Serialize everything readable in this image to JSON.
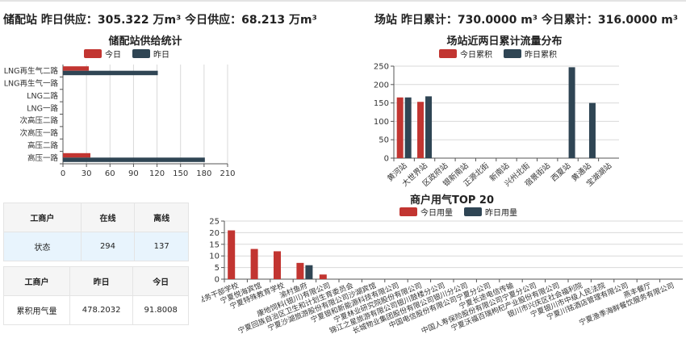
{
  "header": {
    "left": "储配站 昨日供应：305.322 万m³ 今日供应：68.213 万m³",
    "right": "场站 昨日累计：730.0000 m³ 今日累计：316.0000 m³"
  },
  "colors": {
    "today": "#c23531",
    "yesterday": "#2f4554",
    "grid": "#d9d9d9",
    "axis": "#555555"
  },
  "tables": {
    "status": {
      "headers": [
        "工商户",
        "在线",
        "离线"
      ],
      "rows": [
        [
          "状态",
          "294",
          "137"
        ]
      ]
    },
    "usage": {
      "headers": [
        "工商户",
        "昨日",
        "今日"
      ],
      "rows": [
        [
          "累积用气量",
          "478.2032",
          "91.8008"
        ]
      ]
    }
  },
  "chart_data": [
    {
      "type": "bar",
      "orientation": "horizontal",
      "title": "储配站供给统计",
      "legend": [
        "今日",
        "昨日"
      ],
      "categories": [
        "高压一路",
        "高压二路",
        "次高压一路",
        "次高压二路",
        "LNG一路",
        "LNG二路",
        "LNG再生气一路",
        "LNG再生气二路"
      ],
      "series": [
        {
          "name": "今日",
          "values": [
            35,
            0,
            0,
            0,
            0,
            0,
            0,
            33
          ]
        },
        {
          "name": "昨日",
          "values": [
            181,
            0,
            0,
            0,
            0,
            0,
            0,
            121
          ]
        }
      ],
      "xlim": [
        0,
        210
      ],
      "xticks": [
        0,
        30,
        60,
        90,
        120,
        150,
        180,
        210
      ],
      "xticklabels": [
        "0",
        "30",
        "60",
        "90",
        "120",
        "150",
        "180",
        "210"
      ]
    },
    {
      "type": "bar",
      "title": "场站近两日累计流量分布",
      "legend": [
        "今日累积",
        "昨日累积"
      ],
      "categories": [
        "黄河站",
        "大世界站",
        "区政府站",
        "银新南站",
        "正源北街",
        "新南站",
        "兴州北街",
        "宿景街站",
        "西夏站",
        "黄通站",
        "宝湖湖站"
      ],
      "series": [
        {
          "name": "今日累积",
          "values": [
            165,
            153,
            0,
            0,
            0,
            0,
            0,
            0,
            0,
            0,
            0
          ]
        },
        {
          "name": "昨日累积",
          "values": [
            165,
            168,
            0,
            0,
            0,
            0,
            0,
            0,
            247,
            150,
            0
          ]
        }
      ],
      "ylim": [
        0,
        250
      ],
      "yticks": [
        0,
        50,
        100,
        150,
        200,
        250
      ],
      "yticklabels": [
        "0",
        "50",
        "100",
        "150",
        "200",
        "250"
      ]
    },
    {
      "type": "bar",
      "title": "商户用气TOP 20",
      "legend": [
        "今日用量",
        "昨日用量"
      ],
      "categories": [
        "..税务干部学校",
        "宁夏悦海宾馆",
        "宁夏特殊教育学校",
        "渝村鱼府",
        "康地饲料(银川)有限公司",
        "宁夏回族自治区卫生和计划生育委员会",
        "宁夏沙湖旅游股份有限公司沙湖宾馆",
        "宁夏银和新能源科技有限公司",
        "宁夏林业研究院股份有限公司",
        "锦江之星旅游有限公司银川鼓楼分公司",
        "长城物业集团股份有限公司银川分公司",
        "中国电信股份有限公司宁夏分公司",
        "宁夏长途电信传输",
        "中国人寿保险股份有限公司宁夏分公司",
        "宁夏沃福百瑞枸杞产业股份有限公司",
        "银川市兴庆区社会福利院",
        "宁夏银川市中级人民法院",
        "宁夏川铭酒店管理有限公司",
        "燕丰餐厅",
        "宁夏渔季海鲜餐饮服务有限公司"
      ],
      "series": [
        {
          "name": "今日用量",
          "values": [
            21,
            13,
            12,
            7,
            2,
            0,
            0,
            0,
            0,
            0,
            0,
            0,
            0,
            0,
            0,
            0,
            0,
            0,
            0,
            0
          ]
        },
        {
          "name": "昨日用量",
          "values": [
            0,
            0,
            0,
            6,
            0,
            0,
            0,
            0,
            0,
            0,
            0,
            0,
            0,
            0,
            0,
            0,
            0,
            0,
            0,
            0
          ]
        }
      ],
      "ylim": [
        0,
        25
      ],
      "yticks": [
        0,
        5,
        10,
        15,
        20,
        25
      ],
      "yticklabels": [
        "0",
        "5",
        "10",
        "15",
        "20",
        "25"
      ]
    }
  ]
}
